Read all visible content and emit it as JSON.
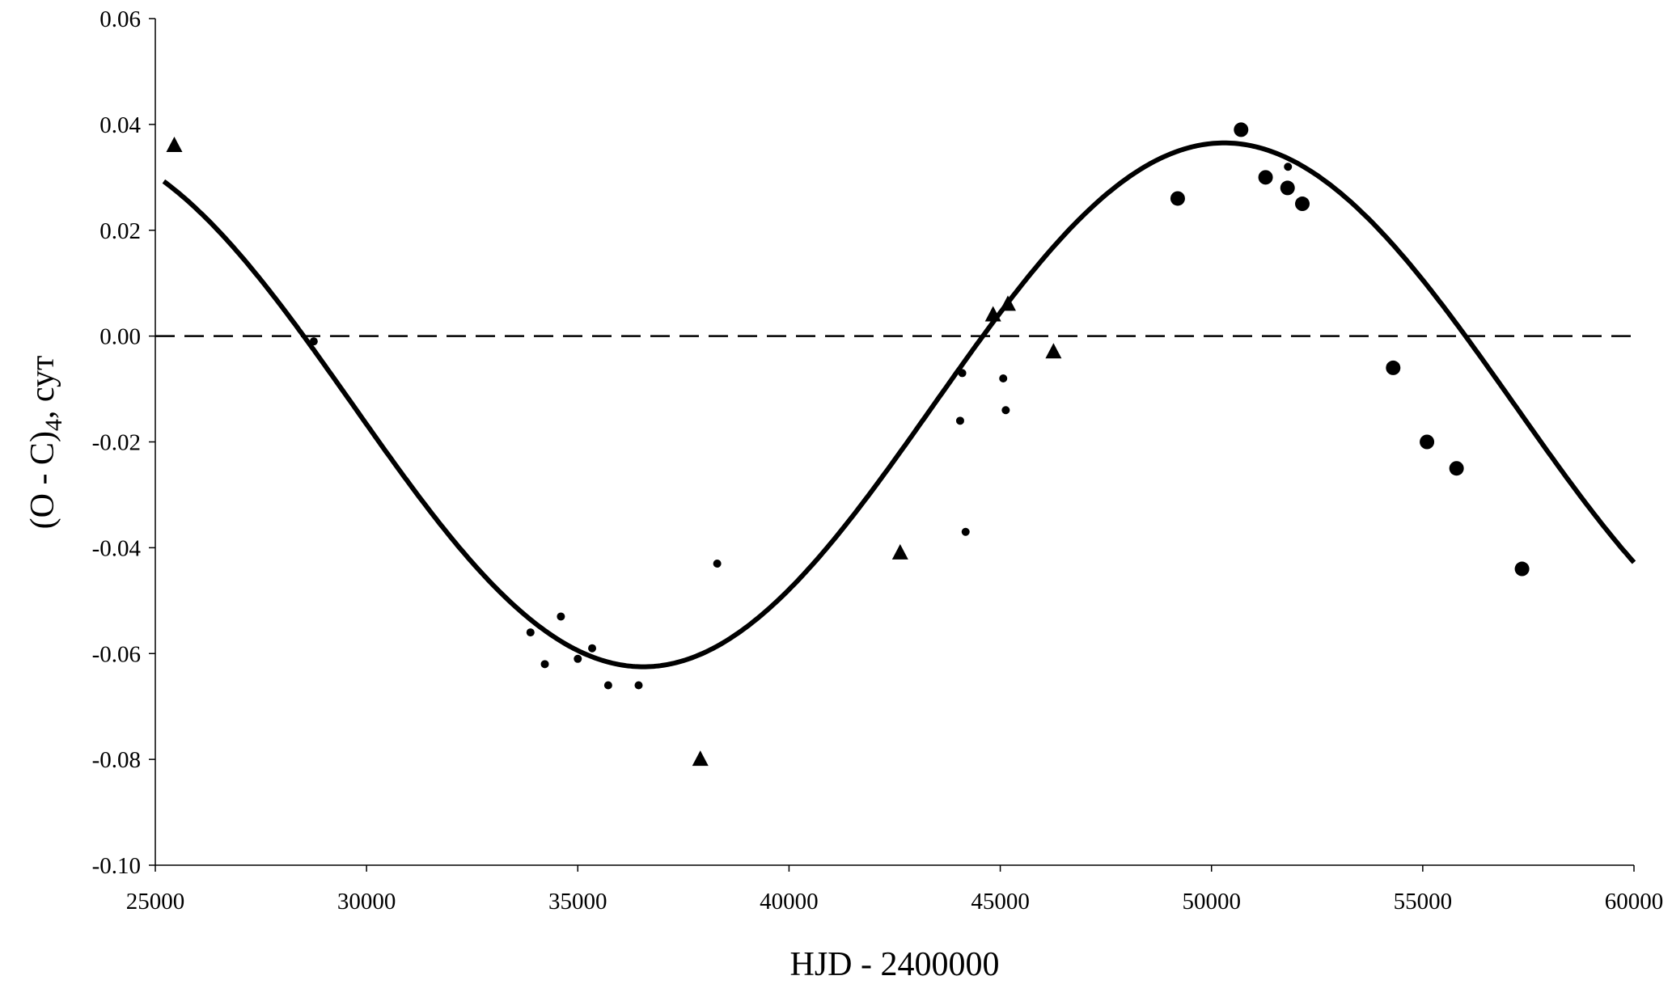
{
  "chart_data": {
    "type": "scatter",
    "xlabel": "HJD - 2400000",
    "ylabel_main": "(O - C)",
    "ylabel_sub": "4",
    "ylabel_rest": ", сут",
    "xlim": [
      25000,
      60000
    ],
    "ylim": [
      -0.1,
      0.06
    ],
    "x_ticks": [
      "25000",
      "30000",
      "35000",
      "40000",
      "45000",
      "50000",
      "55000",
      "60000"
    ],
    "y_ticks": [
      "0.06",
      "0.04",
      "0.02",
      "0.00",
      "-0.02",
      "-0.04",
      "-0.06",
      "-0.08",
      "-0.10"
    ],
    "grid": false,
    "reference_line": {
      "y": 0,
      "style": "dashed"
    },
    "fit_curve": {
      "form": "sinusoid",
      "center": -0.013,
      "amplitude": 0.0495,
      "period": 27500,
      "max_at": 50300
    },
    "series": [
      {
        "marker": "triangle",
        "points": [
          [
            25450,
            0.036
          ],
          [
            37900,
            -0.08
          ],
          [
            42630,
            -0.041
          ],
          [
            44830,
            0.004
          ],
          [
            45180,
            0.006
          ],
          [
            46260,
            -0.003
          ]
        ]
      },
      {
        "marker": "small-dot",
        "points": [
          [
            28750,
            -0.001
          ],
          [
            33880,
            -0.056
          ],
          [
            34220,
            -0.062
          ],
          [
            34600,
            -0.053
          ],
          [
            35000,
            -0.061
          ],
          [
            35340,
            -0.059
          ],
          [
            35720,
            -0.066
          ],
          [
            36440,
            -0.066
          ],
          [
            38300,
            -0.043
          ],
          [
            44050,
            -0.016
          ],
          [
            44100,
            -0.007
          ],
          [
            44180,
            -0.037
          ],
          [
            45070,
            -0.008
          ],
          [
            45130,
            -0.014
          ],
          [
            51810,
            0.032
          ]
        ]
      },
      {
        "marker": "large-dot",
        "points": [
          [
            49200,
            0.026
          ],
          [
            50700,
            0.039
          ],
          [
            51280,
            0.03
          ],
          [
            51800,
            0.028
          ],
          [
            52150,
            0.025
          ],
          [
            54300,
            -0.006
          ],
          [
            55100,
            -0.02
          ],
          [
            55800,
            -0.025
          ],
          [
            57350,
            -0.044
          ]
        ]
      }
    ]
  }
}
